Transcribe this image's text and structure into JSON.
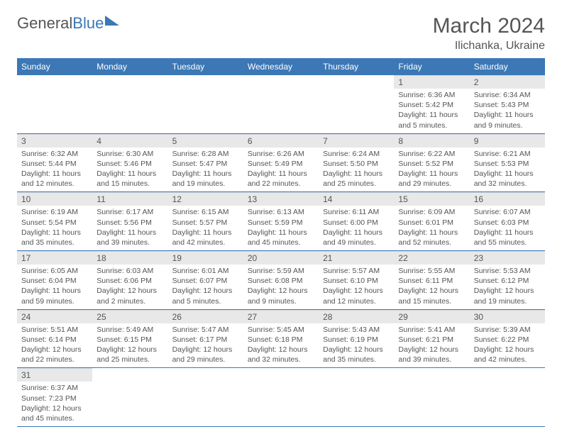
{
  "logo": {
    "part1": "General",
    "part2": "Blue"
  },
  "title": "March 2024",
  "location": "Ilichanka, Ukraine",
  "weekdays": [
    "Sunday",
    "Monday",
    "Tuesday",
    "Wednesday",
    "Thursday",
    "Friday",
    "Saturday"
  ],
  "weeks": [
    [
      null,
      null,
      null,
      null,
      null,
      {
        "n": "1",
        "sunrise": "Sunrise: 6:36 AM",
        "sunset": "Sunset: 5:42 PM",
        "daylight": "Daylight: 11 hours and 5 minutes."
      },
      {
        "n": "2",
        "sunrise": "Sunrise: 6:34 AM",
        "sunset": "Sunset: 5:43 PM",
        "daylight": "Daylight: 11 hours and 9 minutes."
      }
    ],
    [
      {
        "n": "3",
        "sunrise": "Sunrise: 6:32 AM",
        "sunset": "Sunset: 5:44 PM",
        "daylight": "Daylight: 11 hours and 12 minutes."
      },
      {
        "n": "4",
        "sunrise": "Sunrise: 6:30 AM",
        "sunset": "Sunset: 5:46 PM",
        "daylight": "Daylight: 11 hours and 15 minutes."
      },
      {
        "n": "5",
        "sunrise": "Sunrise: 6:28 AM",
        "sunset": "Sunset: 5:47 PM",
        "daylight": "Daylight: 11 hours and 19 minutes."
      },
      {
        "n": "6",
        "sunrise": "Sunrise: 6:26 AM",
        "sunset": "Sunset: 5:49 PM",
        "daylight": "Daylight: 11 hours and 22 minutes."
      },
      {
        "n": "7",
        "sunrise": "Sunrise: 6:24 AM",
        "sunset": "Sunset: 5:50 PM",
        "daylight": "Daylight: 11 hours and 25 minutes."
      },
      {
        "n": "8",
        "sunrise": "Sunrise: 6:22 AM",
        "sunset": "Sunset: 5:52 PM",
        "daylight": "Daylight: 11 hours and 29 minutes."
      },
      {
        "n": "9",
        "sunrise": "Sunrise: 6:21 AM",
        "sunset": "Sunset: 5:53 PM",
        "daylight": "Daylight: 11 hours and 32 minutes."
      }
    ],
    [
      {
        "n": "10",
        "sunrise": "Sunrise: 6:19 AM",
        "sunset": "Sunset: 5:54 PM",
        "daylight": "Daylight: 11 hours and 35 minutes."
      },
      {
        "n": "11",
        "sunrise": "Sunrise: 6:17 AM",
        "sunset": "Sunset: 5:56 PM",
        "daylight": "Daylight: 11 hours and 39 minutes."
      },
      {
        "n": "12",
        "sunrise": "Sunrise: 6:15 AM",
        "sunset": "Sunset: 5:57 PM",
        "daylight": "Daylight: 11 hours and 42 minutes."
      },
      {
        "n": "13",
        "sunrise": "Sunrise: 6:13 AM",
        "sunset": "Sunset: 5:59 PM",
        "daylight": "Daylight: 11 hours and 45 minutes."
      },
      {
        "n": "14",
        "sunrise": "Sunrise: 6:11 AM",
        "sunset": "Sunset: 6:00 PM",
        "daylight": "Daylight: 11 hours and 49 minutes."
      },
      {
        "n": "15",
        "sunrise": "Sunrise: 6:09 AM",
        "sunset": "Sunset: 6:01 PM",
        "daylight": "Daylight: 11 hours and 52 minutes."
      },
      {
        "n": "16",
        "sunrise": "Sunrise: 6:07 AM",
        "sunset": "Sunset: 6:03 PM",
        "daylight": "Daylight: 11 hours and 55 minutes."
      }
    ],
    [
      {
        "n": "17",
        "sunrise": "Sunrise: 6:05 AM",
        "sunset": "Sunset: 6:04 PM",
        "daylight": "Daylight: 11 hours and 59 minutes."
      },
      {
        "n": "18",
        "sunrise": "Sunrise: 6:03 AM",
        "sunset": "Sunset: 6:06 PM",
        "daylight": "Daylight: 12 hours and 2 minutes."
      },
      {
        "n": "19",
        "sunrise": "Sunrise: 6:01 AM",
        "sunset": "Sunset: 6:07 PM",
        "daylight": "Daylight: 12 hours and 5 minutes."
      },
      {
        "n": "20",
        "sunrise": "Sunrise: 5:59 AM",
        "sunset": "Sunset: 6:08 PM",
        "daylight": "Daylight: 12 hours and 9 minutes."
      },
      {
        "n": "21",
        "sunrise": "Sunrise: 5:57 AM",
        "sunset": "Sunset: 6:10 PM",
        "daylight": "Daylight: 12 hours and 12 minutes."
      },
      {
        "n": "22",
        "sunrise": "Sunrise: 5:55 AM",
        "sunset": "Sunset: 6:11 PM",
        "daylight": "Daylight: 12 hours and 15 minutes."
      },
      {
        "n": "23",
        "sunrise": "Sunrise: 5:53 AM",
        "sunset": "Sunset: 6:12 PM",
        "daylight": "Daylight: 12 hours and 19 minutes."
      }
    ],
    [
      {
        "n": "24",
        "sunrise": "Sunrise: 5:51 AM",
        "sunset": "Sunset: 6:14 PM",
        "daylight": "Daylight: 12 hours and 22 minutes."
      },
      {
        "n": "25",
        "sunrise": "Sunrise: 5:49 AM",
        "sunset": "Sunset: 6:15 PM",
        "daylight": "Daylight: 12 hours and 25 minutes."
      },
      {
        "n": "26",
        "sunrise": "Sunrise: 5:47 AM",
        "sunset": "Sunset: 6:17 PM",
        "daylight": "Daylight: 12 hours and 29 minutes."
      },
      {
        "n": "27",
        "sunrise": "Sunrise: 5:45 AM",
        "sunset": "Sunset: 6:18 PM",
        "daylight": "Daylight: 12 hours and 32 minutes."
      },
      {
        "n": "28",
        "sunrise": "Sunrise: 5:43 AM",
        "sunset": "Sunset: 6:19 PM",
        "daylight": "Daylight: 12 hours and 35 minutes."
      },
      {
        "n": "29",
        "sunrise": "Sunrise: 5:41 AM",
        "sunset": "Sunset: 6:21 PM",
        "daylight": "Daylight: 12 hours and 39 minutes."
      },
      {
        "n": "30",
        "sunrise": "Sunrise: 5:39 AM",
        "sunset": "Sunset: 6:22 PM",
        "daylight": "Daylight: 12 hours and 42 minutes."
      }
    ],
    [
      {
        "n": "31",
        "sunrise": "Sunrise: 6:37 AM",
        "sunset": "Sunset: 7:23 PM",
        "daylight": "Daylight: 12 hours and 45 minutes."
      },
      null,
      null,
      null,
      null,
      null,
      null
    ]
  ],
  "colors": {
    "header_bg": "#3b78b5",
    "header_fg": "#ffffff",
    "daynum_bg": "#e8e8e8",
    "text": "#555555",
    "rule": "#3b78b5"
  }
}
